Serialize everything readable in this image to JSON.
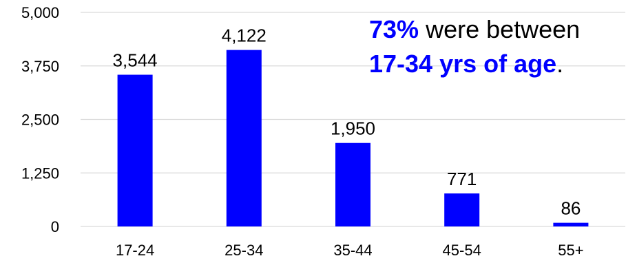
{
  "chart_data": {
    "type": "bar",
    "categories": [
      "17-24",
      "25-34",
      "35-44",
      "45-54",
      "55+"
    ],
    "values": [
      3544,
      4122,
      1950,
      771,
      86
    ],
    "data_labels": [
      "3,544",
      "4,122",
      "1,950",
      "771",
      "86"
    ],
    "ylim": [
      0,
      5000
    ],
    "y_ticks": [
      0,
      1250,
      2500,
      3750,
      5000
    ],
    "y_tick_labels": [
      "0",
      "1,250",
      "2,500",
      "3,750",
      "5,000"
    ],
    "grid": true,
    "bar_color": "#0000ff",
    "title": "",
    "xlabel": "",
    "ylabel": ""
  },
  "annotation": {
    "highlight_1": "73%",
    "text_1": " were between",
    "highlight_2": "17-34 yrs of age",
    "text_2": ".",
    "highlight_color": "#0000ff"
  }
}
